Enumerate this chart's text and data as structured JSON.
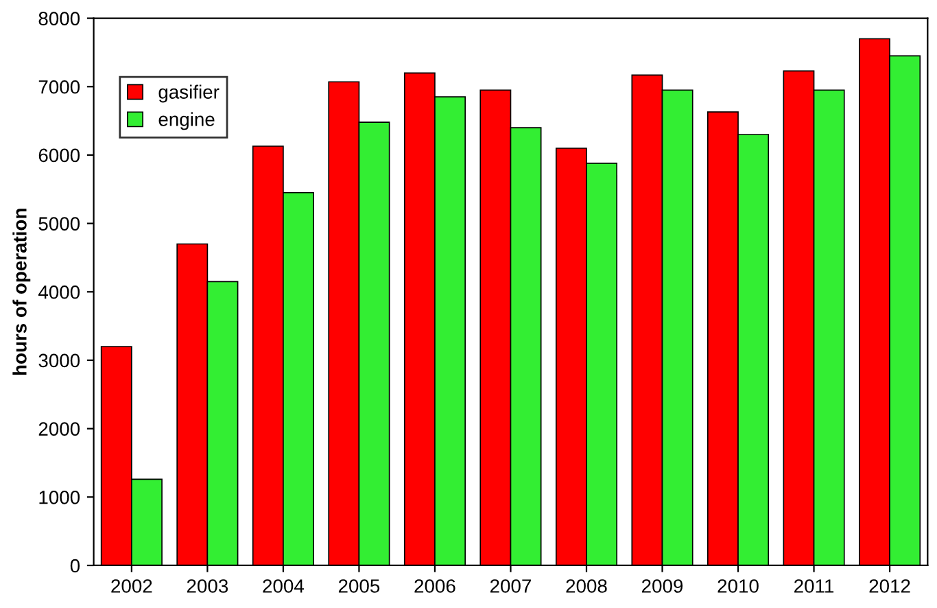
{
  "chart_data": {
    "type": "bar",
    "ylabel": "hours of operation",
    "categories": [
      "2002",
      "2003",
      "2004",
      "2005",
      "2006",
      "2007",
      "2008",
      "2009",
      "2010",
      "2011",
      "2012"
    ],
    "series": [
      {
        "name": "gasifier",
        "color": "#ff0000",
        "values": [
          3200,
          4700,
          6130,
          7070,
          7200,
          6950,
          6100,
          7170,
          6630,
          7230,
          7700
        ]
      },
      {
        "name": "engine",
        "color": "#33ee33",
        "values": [
          1260,
          4150,
          5450,
          6480,
          6850,
          6400,
          5880,
          6950,
          6300,
          6950,
          7450
        ]
      }
    ],
    "ylim": [
      0,
      8000
    ],
    "yticks": [
      0,
      1000,
      2000,
      3000,
      4000,
      5000,
      6000,
      7000,
      8000
    ],
    "grid": false,
    "legend": "top left"
  }
}
